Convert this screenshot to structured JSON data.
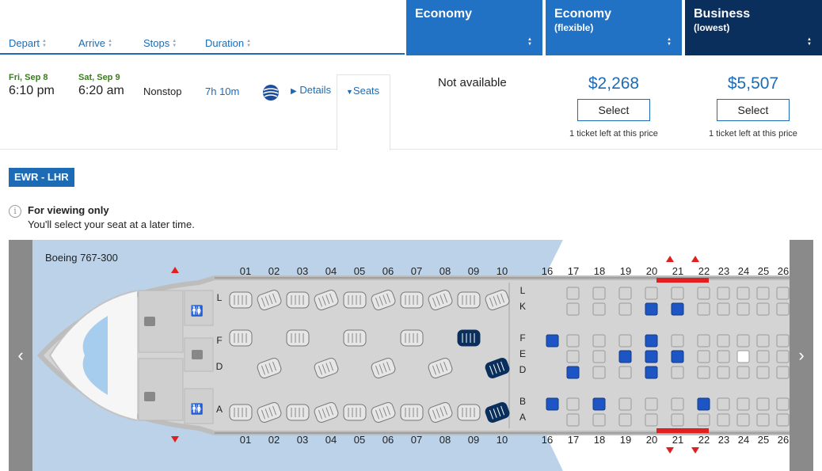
{
  "header": {
    "sort_columns": [
      {
        "label": "Depart"
      },
      {
        "label": "Arrive"
      },
      {
        "label": "Stops"
      },
      {
        "label": "Duration"
      }
    ],
    "fares": [
      {
        "title": "Economy",
        "subtitle": "",
        "color": "#2172c5"
      },
      {
        "title": "Economy",
        "subtitle": "(flexible)",
        "color": "#2172c5"
      },
      {
        "title": "Business",
        "subtitle": "(lowest)",
        "color": "#0b2f5c"
      }
    ]
  },
  "flight": {
    "depart_date": "Fri, Sep 8",
    "depart_time": "6:10 pm",
    "arrive_date": "Sat, Sep 9",
    "arrive_time": "6:20 am",
    "stops": "Nonstop",
    "duration": "7h 10m",
    "airline_icon": "united-globe-logo",
    "details_label": "Details",
    "seats_label": "Seats"
  },
  "prices": {
    "economy": "Not available",
    "economy_flexible": {
      "price": "$2,268",
      "select_label": "Select",
      "availability": "1 ticket left at this price"
    },
    "business": {
      "price": "$5,507",
      "select_label": "Select",
      "availability": "1 ticket left at this price"
    }
  },
  "seatmap": {
    "route_badge": "EWR - LHR",
    "notice_title": "For viewing only",
    "notice_text": "You'll select your seat at a later time.",
    "aircraft": "Boeing 767-300",
    "business_rows": [
      "01",
      "02",
      "03",
      "04",
      "05",
      "06",
      "07",
      "08",
      "09",
      "10"
    ],
    "economy_rows": [
      "16",
      "17",
      "18",
      "19",
      "20",
      "21",
      "22",
      "23",
      "24",
      "25",
      "26"
    ],
    "business_letters": [
      "L",
      "F",
      "D",
      "A"
    ],
    "economy_letters": [
      "L",
      "K",
      "F",
      "E",
      "D",
      "B",
      "A"
    ],
    "available_color": "#1d55c4",
    "cabin_color": "#cfcfcf"
  }
}
